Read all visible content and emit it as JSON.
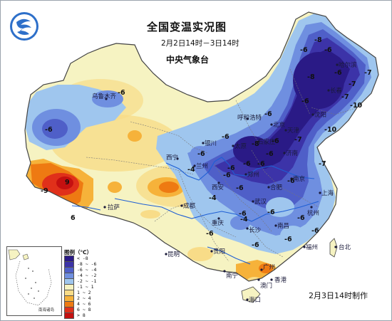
{
  "title": "全国变温实况图",
  "period": "2月2日14时－3日14时",
  "organization": "中央气象台",
  "issued": "2月3日14时制作",
  "legend": {
    "title": "图例（℃）",
    "items": [
      {
        "label": "< -8",
        "color": "#2a1a86"
      },
      {
        "label": "-8 ~ -6",
        "color": "#3c33a8"
      },
      {
        "label": "-6 ~ -4",
        "color": "#4f5fc8"
      },
      {
        "label": "-4 ~ -2",
        "color": "#6f8fe0"
      },
      {
        "label": "-2 ~ -1",
        "color": "#9fc6ee"
      },
      {
        "label": "-1 ~ 1",
        "color": "#f6f3c2"
      },
      {
        "label": "1 ~ 2",
        "color": "#f8dc88"
      },
      {
        "label": "2 ~ 4",
        "color": "#f6b23a"
      },
      {
        "label": "4 ~ 6",
        "color": "#ee7a12"
      },
      {
        "label": "6 ~ 8",
        "color": "#e0301a"
      },
      {
        "label": "> 8",
        "color": "#c41010"
      }
    ]
  },
  "inset_caption": "南海诸岛",
  "cities": [
    {
      "name": "乌鲁木齐"
    },
    {
      "name": "哈尔滨"
    },
    {
      "name": "长春"
    },
    {
      "name": "呼和浩特"
    },
    {
      "name": "沈阳"
    },
    {
      "name": "北京"
    },
    {
      "name": "天津"
    },
    {
      "name": "石家庄"
    },
    {
      "name": "太原"
    },
    {
      "name": "银川"
    },
    {
      "name": "济南"
    },
    {
      "name": "西宁"
    },
    {
      "name": "兰州"
    },
    {
      "name": "郑州"
    },
    {
      "name": "西安"
    },
    {
      "name": "拉萨"
    },
    {
      "name": "成都"
    },
    {
      "name": "合肥"
    },
    {
      "name": "南京"
    },
    {
      "name": "上海"
    },
    {
      "name": "杭州"
    },
    {
      "name": "武汉"
    },
    {
      "name": "重庆"
    },
    {
      "name": "长沙"
    },
    {
      "name": "南昌"
    },
    {
      "name": "福州"
    },
    {
      "name": "贵阳"
    },
    {
      "name": "台北"
    },
    {
      "name": "昆明"
    },
    {
      "name": "广州"
    },
    {
      "name": "南宁"
    },
    {
      "name": "香港"
    },
    {
      "name": "澳门"
    },
    {
      "name": "海口"
    }
  ],
  "isotherm_labels": [
    "-6",
    "-6",
    "-8",
    "-6",
    "-6",
    "-6",
    "-8",
    "-7",
    "-7",
    "-7",
    "-10",
    "-10",
    "-6",
    "-6",
    "-6",
    "-6",
    "-6",
    "-6",
    "-7",
    "-6",
    "-4",
    "-6",
    "-6",
    "-4",
    "-9",
    "9",
    "6",
    "-6",
    "-4",
    "-6",
    "-6",
    "-6",
    "-6",
    "-6",
    "-6",
    "-7",
    "-6",
    "-6",
    "-8",
    "-6"
  ],
  "colors": {
    "ocean": "#ffffff",
    "border": "#555555",
    "river": "#1f5fd4"
  }
}
